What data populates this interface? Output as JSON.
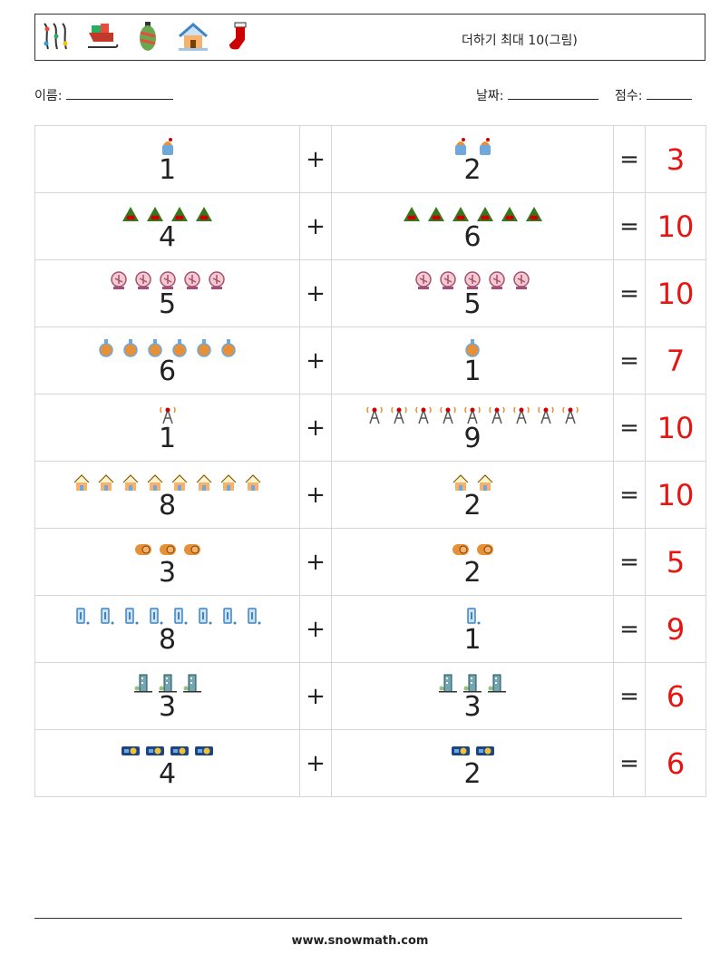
{
  "header": {
    "title": "더하기 최대 10(그림)",
    "icons": [
      "string-lights-icon",
      "sleigh-icon",
      "ornament-icon",
      "snowy-house-icon",
      "stocking-icon"
    ]
  },
  "info": {
    "name_label": "이름:",
    "date_label": "날짜:",
    "score_label": "점수:"
  },
  "symbols": {
    "plus": "+",
    "equals": "="
  },
  "problems": [
    {
      "icon": "bucket",
      "a": 1,
      "b": 2,
      "answer": "3"
    },
    {
      "icon": "holly",
      "a": 4,
      "b": 6,
      "answer": "10"
    },
    {
      "icon": "snowglobe",
      "a": 5,
      "b": 5,
      "answer": "10"
    },
    {
      "icon": "potion",
      "a": 6,
      "b": 1,
      "answer": "7"
    },
    {
      "icon": "tower",
      "a": 1,
      "b": 9,
      "answer": "10"
    },
    {
      "icon": "house",
      "a": 8,
      "b": 2,
      "answer": "10"
    },
    {
      "icon": "log",
      "a": 3,
      "b": 2,
      "answer": "5"
    },
    {
      "icon": "lantern",
      "a": 8,
      "b": 1,
      "answer": "9"
    },
    {
      "icon": "building",
      "a": 3,
      "b": 3,
      "answer": "6"
    },
    {
      "icon": "projector",
      "a": 4,
      "b": 2,
      "answer": "6"
    }
  ],
  "footer": {
    "url": "www.snowmath.com"
  }
}
